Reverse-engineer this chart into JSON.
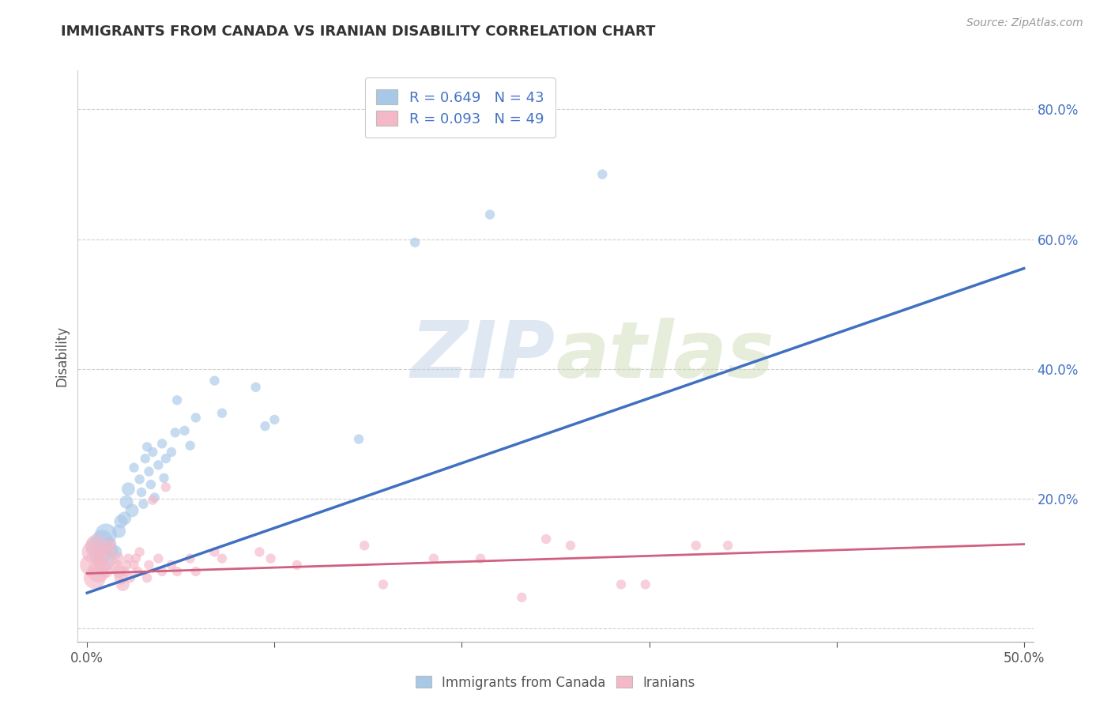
{
  "title": "IMMIGRANTS FROM CANADA VS IRANIAN DISABILITY CORRELATION CHART",
  "source_text": "Source: ZipAtlas.com",
  "ylabel": "Disability",
  "xlim": [
    -0.005,
    0.505
  ],
  "ylim": [
    -0.02,
    0.86
  ],
  "xticks": [
    0.0,
    0.1,
    0.2,
    0.3,
    0.4,
    0.5
  ],
  "xticklabels": [
    "0.0%",
    "",
    "",
    "",
    "",
    "50.0%"
  ],
  "yticks": [
    0.0,
    0.2,
    0.4,
    0.6,
    0.8
  ],
  "yticklabels": [
    "",
    "20.0%",
    "40.0%",
    "60.0%",
    "80.0%"
  ],
  "blue_R": 0.649,
  "blue_N": 43,
  "pink_R": 0.093,
  "pink_N": 49,
  "blue_color": "#a8c8e8",
  "pink_color": "#f4b8c8",
  "blue_scatter": [
    [
      0.005,
      0.125
    ],
    [
      0.007,
      0.115
    ],
    [
      0.008,
      0.135
    ],
    [
      0.009,
      0.105
    ],
    [
      0.01,
      0.145
    ],
    [
      0.012,
      0.13
    ],
    [
      0.013,
      0.12
    ],
    [
      0.015,
      0.118
    ],
    [
      0.017,
      0.15
    ],
    [
      0.018,
      0.165
    ],
    [
      0.02,
      0.17
    ],
    [
      0.021,
      0.195
    ],
    [
      0.022,
      0.215
    ],
    [
      0.024,
      0.182
    ],
    [
      0.025,
      0.248
    ],
    [
      0.028,
      0.23
    ],
    [
      0.029,
      0.21
    ],
    [
      0.03,
      0.192
    ],
    [
      0.031,
      0.262
    ],
    [
      0.032,
      0.28
    ],
    [
      0.033,
      0.242
    ],
    [
      0.034,
      0.222
    ],
    [
      0.035,
      0.272
    ],
    [
      0.036,
      0.202
    ],
    [
      0.038,
      0.252
    ],
    [
      0.04,
      0.285
    ],
    [
      0.041,
      0.232
    ],
    [
      0.042,
      0.262
    ],
    [
      0.045,
      0.272
    ],
    [
      0.047,
      0.302
    ],
    [
      0.048,
      0.352
    ],
    [
      0.052,
      0.305
    ],
    [
      0.055,
      0.282
    ],
    [
      0.058,
      0.325
    ],
    [
      0.068,
      0.382
    ],
    [
      0.072,
      0.332
    ],
    [
      0.09,
      0.372
    ],
    [
      0.095,
      0.312
    ],
    [
      0.1,
      0.322
    ],
    [
      0.145,
      0.292
    ],
    [
      0.175,
      0.595
    ],
    [
      0.215,
      0.638
    ],
    [
      0.275,
      0.7
    ]
  ],
  "pink_scatter": [
    [
      0.002,
      0.098
    ],
    [
      0.003,
      0.118
    ],
    [
      0.004,
      0.078
    ],
    [
      0.005,
      0.128
    ],
    [
      0.006,
      0.088
    ],
    [
      0.008,
      0.108
    ],
    [
      0.009,
      0.098
    ],
    [
      0.01,
      0.088
    ],
    [
      0.011,
      0.118
    ],
    [
      0.012,
      0.128
    ],
    [
      0.015,
      0.098
    ],
    [
      0.016,
      0.108
    ],
    [
      0.017,
      0.088
    ],
    [
      0.018,
      0.078
    ],
    [
      0.019,
      0.068
    ],
    [
      0.02,
      0.088
    ],
    [
      0.021,
      0.098
    ],
    [
      0.022,
      0.108
    ],
    [
      0.023,
      0.078
    ],
    [
      0.025,
      0.098
    ],
    [
      0.026,
      0.108
    ],
    [
      0.027,
      0.088
    ],
    [
      0.028,
      0.118
    ],
    [
      0.032,
      0.078
    ],
    [
      0.033,
      0.098
    ],
    [
      0.035,
      0.198
    ],
    [
      0.038,
      0.108
    ],
    [
      0.04,
      0.088
    ],
    [
      0.042,
      0.218
    ],
    [
      0.045,
      0.098
    ],
    [
      0.048,
      0.088
    ],
    [
      0.055,
      0.108
    ],
    [
      0.058,
      0.088
    ],
    [
      0.068,
      0.118
    ],
    [
      0.072,
      0.108
    ],
    [
      0.092,
      0.118
    ],
    [
      0.098,
      0.108
    ],
    [
      0.112,
      0.098
    ],
    [
      0.148,
      0.128
    ],
    [
      0.158,
      0.068
    ],
    [
      0.185,
      0.108
    ],
    [
      0.21,
      0.108
    ],
    [
      0.232,
      0.048
    ],
    [
      0.245,
      0.138
    ],
    [
      0.258,
      0.128
    ],
    [
      0.285,
      0.068
    ],
    [
      0.298,
      0.068
    ],
    [
      0.325,
      0.128
    ],
    [
      0.342,
      0.128
    ]
  ],
  "blue_line_x": [
    0.0,
    0.5
  ],
  "blue_line_y": [
    0.055,
    0.555
  ],
  "pink_line_x": [
    0.0,
    0.5
  ],
  "pink_line_y": [
    0.085,
    0.13
  ],
  "watermark_zip": "ZIP",
  "watermark_atlas": "atlas",
  "background_color": "#ffffff",
  "grid_color": "#d0d0d0",
  "blue_line_color": "#4070c0",
  "pink_line_color": "#d06080"
}
